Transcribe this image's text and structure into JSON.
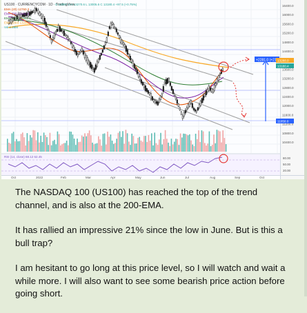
{
  "chart": {
    "symbol_line": "US100 · CURRENCYCOM · 1D · TradingView",
    "ohlc_line": "O 13087.2 H 13270.6 L 13005.6 C 13180.4 +97.5 (+0.75%)",
    "indicators": [
      {
        "label": "EMA (20)",
        "value": "12760.3",
        "color": "#e65100"
      },
      {
        "label": "EMA (50)",
        "value": "12442.8",
        "color": "#7b1fa2"
      },
      {
        "label": "EMA (100)",
        "value": "12691.5",
        "color": "#2e7d32"
      },
      {
        "label": "EMA (200)",
        "value": "13288.0",
        "color": "#f9a825"
      },
      {
        "label": "Vol",
        "value": "1.28M",
        "color": "#26a69a"
      }
    ],
    "price_axis": [
      "16400.0",
      "16000.0",
      "15600.0",
      "15200.0",
      "14800.0",
      "14400.0",
      "14000.0",
      "13600.0",
      "13200.0",
      "12800.0",
      "12400.0",
      "12000.0",
      "11600.0",
      "11200.0",
      "10800.0",
      "10400.0"
    ],
    "price_tags": [
      {
        "value": "13288.0",
        "color": "#f9a825"
      },
      {
        "value": "13180.4",
        "color": "#26a69a"
      },
      {
        "value": "11050.0",
        "color": "#2962ff"
      }
    ],
    "measure_label": "+2281.0 (+21.00%)",
    "time_axis": [
      "Oct",
      "2022",
      "Feb",
      "Mar",
      "Apr",
      "May",
      "Jun",
      "Jul",
      "Aug",
      "Sep",
      "Oct"
    ],
    "rsi_line": "RSI (14, close) 68.12 62.45",
    "rsi_axis": [
      "80.00",
      "50.00",
      "20.00"
    ]
  },
  "post": {
    "paragraphs": [
      "The NASDAQ 100 (US100) has reached the top of the trend channel, and is also at the 200-EMA.",
      "It has rallied an impressive 21% since the low in June. But is this a bull trap?",
      "I am hesitant to go long at this price level, so I will watch and wait a while more. I will also want to see some bearish price action before going short."
    ]
  }
}
